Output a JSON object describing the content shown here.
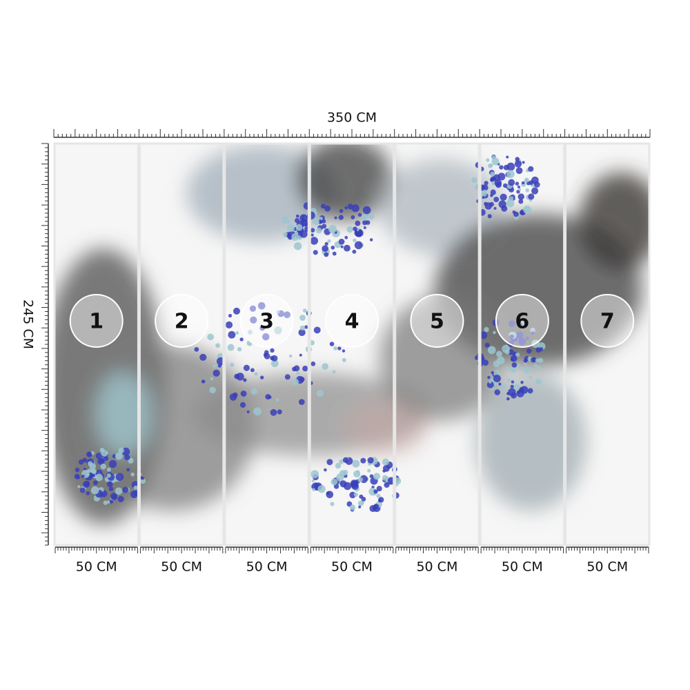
{
  "dimensions": {
    "width": "350 CM",
    "height": "245 CM"
  },
  "panels": [
    {
      "number": 1,
      "width": "50 CM"
    },
    {
      "number": 2,
      "width": "50 CM"
    },
    {
      "number": 3,
      "width": "50 CM"
    },
    {
      "number": 4,
      "width": "50 CM"
    },
    {
      "number": 5,
      "width": "50 CM"
    },
    {
      "number": 6,
      "width": "50 CM"
    },
    {
      "number": 7,
      "width": "50 CM"
    }
  ]
}
